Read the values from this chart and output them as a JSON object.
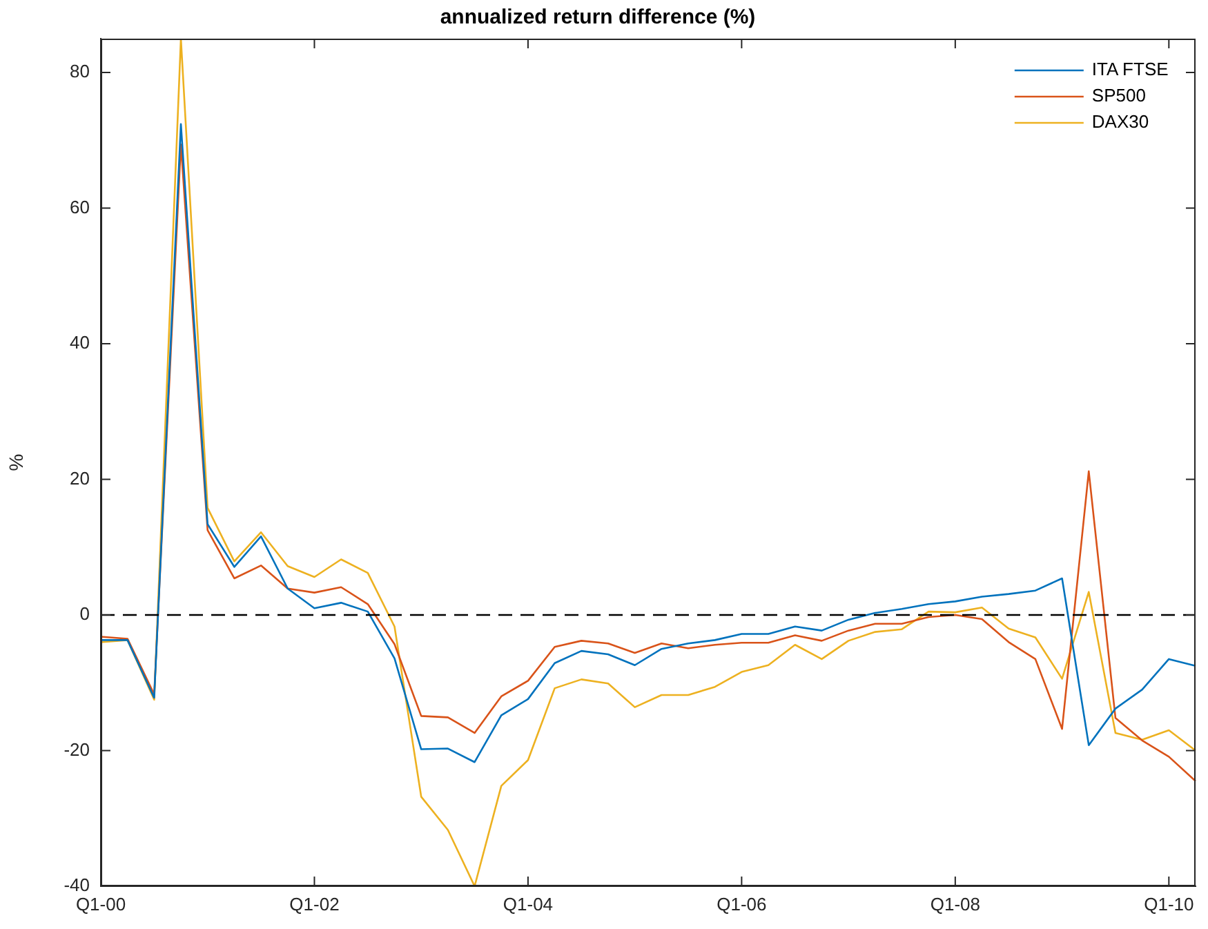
{
  "chart_data": {
    "type": "line",
    "title": "annualized return difference (%)",
    "ylabel": "%",
    "categories": [
      "Q1-00",
      null,
      null,
      null,
      null,
      null,
      null,
      null,
      "Q1-02",
      null,
      null,
      null,
      null,
      null,
      null,
      null,
      "Q1-04",
      null,
      null,
      null,
      null,
      null,
      null,
      null,
      "Q1-06",
      null,
      null,
      null,
      null,
      null,
      null,
      null,
      "Q1-08",
      null,
      null,
      null,
      null,
      null,
      null,
      null,
      "Q1-10",
      null
    ],
    "series": [
      {
        "name": "ITA FTSE",
        "color": "#0072bd",
        "values": [
          -3.7,
          -3.7,
          -12.2,
          72.4,
          13.4,
          7.1,
          11.6,
          3.9,
          1.0,
          1.8,
          0.5,
          -6.4,
          -19.8,
          -19.7,
          -21.7,
          -14.8,
          -12.4,
          -7.1,
          -5.3,
          -5.8,
          -7.4,
          -5.0,
          -4.2,
          -3.7,
          -2.8,
          -2.8,
          -1.7,
          -2.3,
          -0.7,
          0.3,
          0.9,
          1.6,
          2.0,
          2.7,
          3.1,
          3.6,
          5.4,
          -19.2,
          -13.8,
          -11.0,
          -6.5,
          -7.5
        ]
      },
      {
        "name": "SP500",
        "color": "#d95319",
        "values": [
          -3.2,
          -3.5,
          -11.7,
          69.4,
          12.5,
          5.4,
          7.3,
          3.9,
          3.3,
          4.1,
          1.6,
          -4.3,
          -14.9,
          -15.1,
          -17.4,
          -12.0,
          -9.7,
          -4.7,
          -3.8,
          -4.2,
          -5.6,
          -4.2,
          -4.9,
          -4.4,
          -4.1,
          -4.1,
          -3.0,
          -3.8,
          -2.3,
          -1.3,
          -1.3,
          -0.3,
          0,
          -0.6,
          -4.0,
          -6.5,
          -16.8,
          21.2,
          -15.2,
          -18.5,
          -20.9,
          -24.5
        ]
      },
      {
        "name": "DAX30",
        "color": "#edb120",
        "values": [
          -4.0,
          -3.7,
          -12.5,
          85,
          15.8,
          7.9,
          12.2,
          7.2,
          5.6,
          8.2,
          6.2,
          -1.7,
          -26.8,
          -31.7,
          -40,
          -25.2,
          -21.4,
          -10.8,
          -9.5,
          -10.1,
          -13.6,
          -11.8,
          -11.8,
          -10.6,
          -8.4,
          -7.4,
          -4.4,
          -6.5,
          -3.8,
          -2.5,
          -2.1,
          0.5,
          0.4,
          1.1,
          -2.0,
          -3.3,
          -9.4,
          3.4,
          -17.4,
          -18.4,
          -17.0,
          -20.0
        ]
      }
    ],
    "ylim": [
      -40,
      85
    ],
    "yticks": [
      -40,
      -20,
      0,
      20,
      40,
      60,
      80
    ],
    "ref_lines": [
      {
        "axis": "y",
        "value": 0,
        "color": "#000000",
        "line_style": "dashed"
      }
    ],
    "grid": false,
    "legend": "top right",
    "marker": "none",
    "line_style": "solid"
  }
}
